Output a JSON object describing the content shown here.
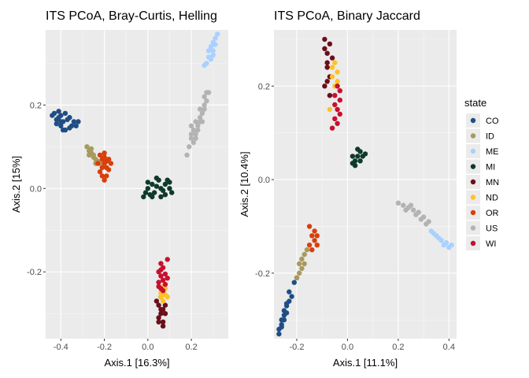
{
  "legend": {
    "title": "state",
    "items": [
      {
        "label": "CO",
        "color": "#1f4e85"
      },
      {
        "label": "ID",
        "color": "#a89a5e"
      },
      {
        "label": "ME",
        "color": "#a8d1ff"
      },
      {
        "label": "MI",
        "color": "#0f3a2a"
      },
      {
        "label": "MN",
        "color": "#6b0f1a"
      },
      {
        "label": "ND",
        "color": "#ffc226"
      },
      {
        "label": "OR",
        "color": "#d93f0b"
      },
      {
        "label": "US",
        "color": "#b3b3b3"
      },
      {
        "label": "WI",
        "color": "#c8102e"
      }
    ]
  },
  "chart_data": [
    {
      "type": "scatter",
      "title": "ITS PCoA, Bray-Curtis, Helling",
      "xlabel": "Axis.1   [16.3%]",
      "ylabel": "Axis.2   [15%]",
      "xlim": [
        -0.47,
        0.37
      ],
      "ylim": [
        -0.36,
        0.38
      ],
      "xticks": [
        -0.4,
        -0.2,
        0.0,
        0.2
      ],
      "xtick_labels": [
        "-0.4",
        "-0.2",
        "0.0",
        "0.2"
      ],
      "yticks": [
        -0.2,
        0.0,
        0.2
      ],
      "ytick_labels": [
        "-0.2",
        "0.0",
        "0.2"
      ],
      "grid": true,
      "series": [
        {
          "name": "CO",
          "points": [
            [
              -0.43,
              0.18
            ],
            [
              -0.42,
              0.165
            ],
            [
              -0.41,
              0.17
            ],
            [
              -0.4,
              0.15
            ],
            [
              -0.39,
              0.16
            ],
            [
              -0.38,
              0.14
            ],
            [
              -0.36,
              0.145
            ],
            [
              -0.34,
              0.16
            ],
            [
              -0.33,
              0.15
            ],
            [
              -0.41,
              0.185
            ],
            [
              -0.4,
              0.175
            ],
            [
              -0.42,
              0.155
            ],
            [
              -0.37,
              0.165
            ],
            [
              -0.38,
              0.18
            ],
            [
              -0.39,
              0.14
            ],
            [
              -0.44,
              0.175
            ],
            [
              -0.35,
              0.15
            ],
            [
              -0.32,
              0.16
            ],
            [
              -0.36,
              0.17
            ],
            [
              -0.4,
              0.16
            ]
          ]
        },
        {
          "name": "ID",
          "points": [
            [
              -0.28,
              0.1
            ],
            [
              -0.27,
              0.09
            ],
            [
              -0.26,
              0.085
            ],
            [
              -0.25,
              0.08
            ],
            [
              -0.24,
              0.07
            ],
            [
              -0.23,
              0.065
            ],
            [
              -0.22,
              0.06
            ],
            [
              -0.26,
              0.095
            ],
            [
              -0.25,
              0.075
            ],
            [
              -0.24,
              0.06
            ],
            [
              -0.27,
              0.08
            ]
          ]
        },
        {
          "name": "ME",
          "points": [
            [
              0.28,
              0.33
            ],
            [
              0.29,
              0.34
            ],
            [
              0.3,
              0.35
            ],
            [
              0.31,
              0.36
            ],
            [
              0.3,
              0.32
            ],
            [
              0.29,
              0.31
            ],
            [
              0.27,
              0.3
            ],
            [
              0.32,
              0.37
            ],
            [
              0.31,
              0.345
            ],
            [
              0.28,
              0.315
            ],
            [
              0.26,
              0.295
            ],
            [
              0.3,
              0.33
            ]
          ]
        },
        {
          "name": "MI",
          "points": [
            [
              0.0,
              0.0
            ],
            [
              0.02,
              0.01
            ],
            [
              0.04,
              0.005
            ],
            [
              0.06,
              0.0
            ],
            [
              0.08,
              0.01
            ],
            [
              0.1,
              0.0
            ],
            [
              0.03,
              -0.01
            ],
            [
              0.05,
              0.02
            ],
            [
              0.07,
              -0.005
            ],
            [
              0.01,
              -0.015
            ],
            [
              0.0,
              0.015
            ],
            [
              0.09,
              0.02
            ],
            [
              -0.01,
              -0.01
            ],
            [
              0.04,
              0.025
            ],
            [
              0.06,
              -0.02
            ],
            [
              0.11,
              -0.01
            ],
            [
              0.02,
              -0.02
            ],
            [
              0.08,
              -0.015
            ],
            [
              0.1,
              0.015
            ],
            [
              -0.02,
              -0.02
            ]
          ]
        },
        {
          "name": "MN",
          "points": [
            [
              0.05,
              -0.28
            ],
            [
              0.06,
              -0.3
            ],
            [
              0.07,
              -0.32
            ],
            [
              0.05,
              -0.31
            ],
            [
              0.06,
              -0.29
            ],
            [
              0.08,
              -0.3
            ],
            [
              0.04,
              -0.27
            ],
            [
              0.07,
              -0.33
            ],
            [
              0.06,
              -0.26
            ],
            [
              0.08,
              -0.28
            ],
            [
              0.05,
              -0.32
            ],
            [
              0.07,
              -0.29
            ]
          ]
        },
        {
          "name": "ND",
          "points": [
            [
              0.06,
              -0.26
            ],
            [
              0.07,
              -0.25
            ],
            [
              0.08,
              -0.24
            ],
            [
              0.07,
              -0.27
            ],
            [
              0.09,
              -0.26
            ],
            [
              0.06,
              -0.25
            ],
            [
              0.08,
              -0.255
            ],
            [
              0.07,
              -0.235
            ]
          ]
        },
        {
          "name": "OR",
          "points": [
            [
              -0.22,
              0.08
            ],
            [
              -0.21,
              0.07
            ],
            [
              -0.2,
              0.06
            ],
            [
              -0.19,
              0.05
            ],
            [
              -0.22,
              0.04
            ],
            [
              -0.21,
              0.03
            ],
            [
              -0.2,
              0.075
            ],
            [
              -0.19,
              0.065
            ],
            [
              -0.18,
              0.045
            ],
            [
              -0.23,
              0.06
            ],
            [
              -0.2,
              0.02
            ],
            [
              -0.18,
              0.07
            ],
            [
              -0.21,
              0.05
            ],
            [
              -0.19,
              0.03
            ],
            [
              -0.17,
              0.06
            ],
            [
              -0.2,
              0.085
            ]
          ]
        },
        {
          "name": "US",
          "points": [
            [
              0.2,
              0.15
            ],
            [
              0.21,
              0.14
            ],
            [
              0.22,
              0.13
            ],
            [
              0.23,
              0.15
            ],
            [
              0.24,
              0.17
            ],
            [
              0.25,
              0.18
            ],
            [
              0.26,
              0.2
            ],
            [
              0.27,
              0.21
            ],
            [
              0.2,
              0.12
            ],
            [
              0.19,
              0.1
            ],
            [
              0.21,
              0.11
            ],
            [
              0.22,
              0.16
            ],
            [
              0.24,
              0.19
            ],
            [
              0.26,
              0.22
            ],
            [
              0.23,
              0.14
            ],
            [
              0.25,
              0.16
            ],
            [
              0.27,
              0.23
            ],
            [
              0.18,
              0.08
            ],
            [
              0.2,
              0.13
            ],
            [
              0.22,
              0.12
            ],
            [
              0.24,
              0.16
            ],
            [
              0.26,
              0.19
            ],
            [
              0.28,
              0.23
            ]
          ]
        },
        {
          "name": "WI",
          "points": [
            [
              0.05,
              -0.2
            ],
            [
              0.06,
              -0.21
            ],
            [
              0.07,
              -0.22
            ],
            [
              0.08,
              -0.23
            ],
            [
              0.06,
              -0.24
            ],
            [
              0.07,
              -0.19
            ],
            [
              0.05,
              -0.225
            ],
            [
              0.08,
              -0.205
            ],
            [
              0.06,
              -0.18
            ],
            [
              0.07,
              -0.245
            ],
            [
              0.09,
              -0.215
            ],
            [
              0.05,
              -0.235
            ],
            [
              0.06,
              -0.195
            ],
            [
              0.09,
              -0.17
            ]
          ]
        }
      ]
    },
    {
      "type": "scatter",
      "title": "ITS PCoA, Binary Jaccard",
      "xlabel": "Axis.1   [11.1%]",
      "ylabel": "Axis.2   [10.4%]",
      "xlim": [
        -0.29,
        0.43
      ],
      "ylim": [
        -0.34,
        0.32
      ],
      "xticks": [
        -0.2,
        0.0,
        0.2,
        0.4
      ],
      "xtick_labels": [
        "-0.2",
        "0.0",
        "0.2",
        "0.4"
      ],
      "yticks": [
        -0.2,
        0.0,
        0.2
      ],
      "ytick_labels": [
        "-0.2",
        "0.0",
        "0.2"
      ],
      "grid": true,
      "series": [
        {
          "name": "CO",
          "points": [
            [
              -0.27,
              -0.32
            ],
            [
              -0.26,
              -0.31
            ],
            [
              -0.25,
              -0.29
            ],
            [
              -0.24,
              -0.27
            ],
            [
              -0.23,
              -0.26
            ],
            [
              -0.22,
              -0.25
            ],
            [
              -0.27,
              -0.33
            ],
            [
              -0.26,
              -0.3
            ],
            [
              -0.25,
              -0.28
            ],
            [
              -0.24,
              -0.265
            ],
            [
              -0.23,
              -0.24
            ],
            [
              -0.21,
              -0.22
            ],
            [
              -0.2,
              -0.21
            ],
            [
              -0.26,
              -0.315
            ],
            [
              -0.25,
              -0.3
            ],
            [
              -0.24,
              -0.285
            ]
          ]
        },
        {
          "name": "ID",
          "points": [
            [
              -0.19,
              -0.18
            ],
            [
              -0.18,
              -0.17
            ],
            [
              -0.17,
              -0.16
            ],
            [
              -0.19,
              -0.2
            ],
            [
              -0.18,
              -0.19
            ],
            [
              -0.2,
              -0.21
            ],
            [
              -0.17,
              -0.18
            ],
            [
              -0.16,
              -0.15
            ]
          ]
        },
        {
          "name": "ME",
          "points": [
            [
              0.35,
              -0.12
            ],
            [
              0.37,
              -0.13
            ],
            [
              0.39,
              -0.135
            ],
            [
              0.4,
              -0.145
            ],
            [
              0.36,
              -0.125
            ],
            [
              0.38,
              -0.14
            ],
            [
              0.34,
              -0.115
            ],
            [
              0.41,
              -0.14
            ],
            [
              0.33,
              -0.11
            ]
          ]
        },
        {
          "name": "MI",
          "points": [
            [
              0.02,
              0.05
            ],
            [
              0.03,
              0.04
            ],
            [
              0.04,
              0.05
            ],
            [
              0.05,
              0.06
            ],
            [
              0.06,
              0.05
            ],
            [
              0.03,
              0.03
            ],
            [
              0.05,
              0.04
            ],
            [
              0.04,
              0.065
            ],
            [
              0.07,
              0.055
            ],
            [
              0.02,
              0.035
            ]
          ]
        },
        {
          "name": "MN",
          "points": [
            [
              -0.09,
              0.28
            ],
            [
              -0.08,
              0.27
            ],
            [
              -0.07,
              0.29
            ],
            [
              -0.08,
              0.25
            ],
            [
              -0.07,
              0.22
            ],
            [
              -0.09,
              0.2
            ],
            [
              -0.08,
              0.24
            ],
            [
              -0.06,
              0.26
            ],
            [
              -0.09,
              0.3
            ],
            [
              -0.07,
              0.18
            ],
            [
              -0.08,
              0.21
            ]
          ]
        },
        {
          "name": "ND",
          "points": [
            [
              -0.05,
              0.25
            ],
            [
              -0.04,
              0.23
            ],
            [
              -0.06,
              0.22
            ],
            [
              -0.05,
              0.2
            ],
            [
              -0.04,
              0.21
            ],
            [
              -0.06,
              0.24
            ],
            [
              -0.07,
              0.15
            ]
          ]
        },
        {
          "name": "OR",
          "points": [
            [
              -0.13,
              -0.13
            ],
            [
              -0.14,
              -0.12
            ],
            [
              -0.15,
              -0.14
            ],
            [
              -0.13,
              -0.11
            ],
            [
              -0.12,
              -0.12
            ],
            [
              -0.14,
              -0.15
            ],
            [
              -0.15,
              -0.1
            ],
            [
              -0.12,
              -0.14
            ]
          ]
        },
        {
          "name": "US",
          "points": [
            [
              0.2,
              -0.05
            ],
            [
              0.22,
              -0.055
            ],
            [
              0.24,
              -0.06
            ],
            [
              0.26,
              -0.065
            ],
            [
              0.28,
              -0.07
            ],
            [
              0.3,
              -0.08
            ],
            [
              0.32,
              -0.09
            ],
            [
              0.25,
              -0.055
            ],
            [
              0.27,
              -0.075
            ],
            [
              0.29,
              -0.085
            ],
            [
              0.31,
              -0.095
            ],
            [
              0.23,
              -0.065
            ]
          ]
        },
        {
          "name": "WI",
          "points": [
            [
              -0.04,
              0.2
            ],
            [
              -0.05,
              0.18
            ],
            [
              -0.03,
              0.17
            ],
            [
              -0.04,
              0.15
            ],
            [
              -0.05,
              0.16
            ],
            [
              -0.03,
              0.19
            ],
            [
              -0.05,
              0.13
            ],
            [
              -0.04,
              0.12
            ],
            [
              -0.06,
              0.11
            ],
            [
              -0.03,
              0.14
            ]
          ]
        }
      ]
    }
  ]
}
